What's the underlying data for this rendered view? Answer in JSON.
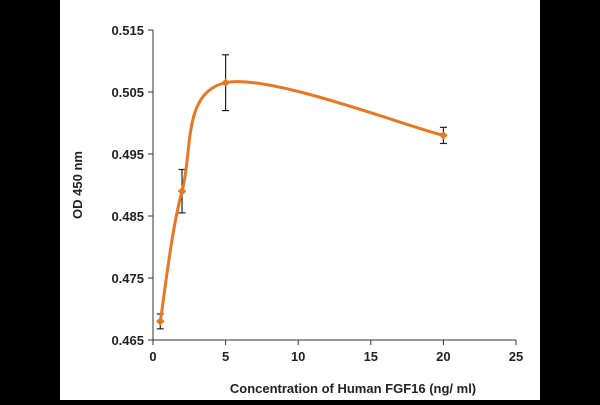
{
  "chart_data": {
    "type": "line",
    "title": "",
    "xlabel": "Concentration of Human FGF16 (ng/ ml)",
    "ylabel": "OD 450 nm",
    "xlim": [
      0,
      25
    ],
    "ylim": [
      0.465,
      0.515
    ],
    "xticks": [
      0,
      5,
      10,
      15,
      20,
      25
    ],
    "yticks": [
      0.465,
      0.475,
      0.485,
      0.495,
      0.505,
      0.515
    ],
    "ytick_labels": [
      "0.465",
      "0.475",
      "0.485",
      "0.495",
      "0.505",
      "0.515"
    ],
    "grid": false,
    "legend": "none",
    "line_color": "#e87722",
    "series": [
      {
        "x": [
          0.5,
          2,
          5,
          20
        ],
        "y": [
          0.468,
          0.489,
          0.5065,
          0.498
        ],
        "error": [
          0.0012,
          0.0035,
          0.0045,
          0.0013
        ]
      }
    ]
  }
}
